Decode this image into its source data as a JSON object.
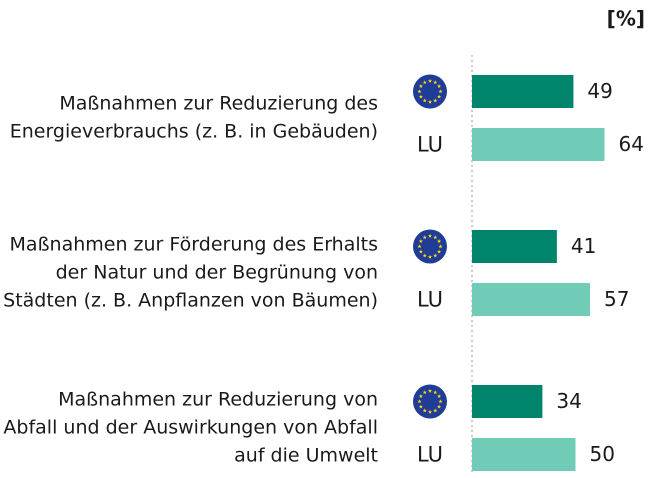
{
  "chart_data": {
    "type": "bar",
    "orientation": "horizontal",
    "unit_label": "[%]",
    "categories": [
      [
        "Maßnahmen zur Reduzierung des",
        "Energieverbrauchs (z. B. in Gebäuden)"
      ],
      [
        "Maßnahmen zur Förderung des Erhalts",
        "der Natur und der Begrünung von",
        "Städten (z. B. Anpflanzen von Bäumen)"
      ],
      [
        "Maßnahmen zur Reduzierung von",
        "Abfall und der Auswirkungen von Abfall",
        "auf die Umwelt"
      ]
    ],
    "series": [
      {
        "color": "#00856c",
        "values": [
          49,
          41,
          34
        ]
      },
      {
        "name": "LU",
        "color": "#70cbb7",
        "values": [
          64,
          57,
          50
        ]
      }
    ]
  }
}
